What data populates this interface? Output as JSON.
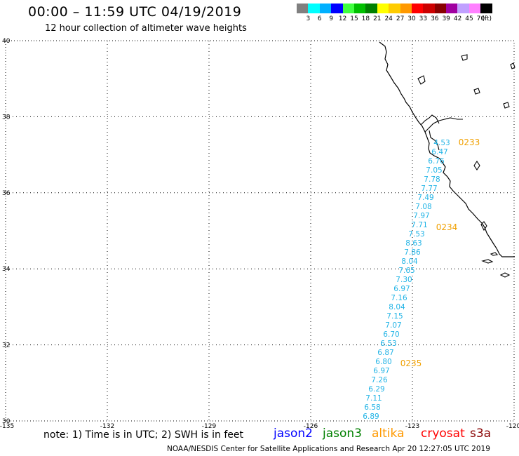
{
  "title": "00:00 – 11:59 UTC 04/19/2019",
  "subtitle": "12 hour collection of altimeter wave heights",
  "colorbar": {
    "colors": [
      "#808080",
      "#00ffff",
      "#00b0ff",
      "#0000ff",
      "#40ff40",
      "#00c000",
      "#008000",
      "#ffff00",
      "#ffcc00",
      "#ff9900",
      "#ff0000",
      "#cc0000",
      "#880000",
      "#a000a0",
      "#c0a0ff",
      "#ff80ff",
      "#000000"
    ],
    "labels": [
      "3",
      "6",
      "9",
      "12",
      "15",
      "18",
      "21",
      "24",
      "27",
      "30",
      "33",
      "36",
      "39",
      "42",
      "45",
      "70"
    ],
    "units": "(ft)"
  },
  "axes": {
    "y_ticks": [
      "40",
      "38",
      "36",
      "34",
      "32",
      "30"
    ],
    "x_ticks": [
      "-135",
      "-132",
      "-129",
      "-126",
      "-123",
      "-120"
    ]
  },
  "map_data": {
    "lon_range": [
      -135,
      -120
    ],
    "lat_range": [
      30,
      40
    ],
    "track_color": "#22b4e6",
    "time_color": "#f0a000",
    "swh_values": [
      "4.53",
      "6.47",
      "6.76",
      "7.05",
      "7.78",
      "7.77",
      "7.49",
      "7.08",
      "7.97",
      "7.71",
      "7.53",
      "8.63",
      "7.86",
      "8.04",
      "7.65",
      "7.30",
      "6.97",
      "7.16",
      "8.04",
      "7.15",
      "7.07",
      "6.70",
      "6.53",
      "6.87",
      "6.80",
      "6.97",
      "7.26",
      "6.29",
      "7.11",
      "6.58",
      "6.89"
    ],
    "time_labels": [
      "0233",
      "0234",
      "0235"
    ]
  },
  "note": "note: 1) Time is in UTC; 2) SWH is in feet",
  "satellites": [
    {
      "name": "jason2",
      "color": "#0000ff"
    },
    {
      "name": "jason3",
      "color": "#008000"
    },
    {
      "name": "altika",
      "color": "#ff9900"
    },
    {
      "name": "cryosat",
      "color": "#ff0000"
    },
    {
      "name": "s3a",
      "color": "#880000"
    }
  ],
  "credit": "NOAA/NESDIS Center for Satellite Applications and Research   Apr 20 12:27:05 UTC 2019"
}
